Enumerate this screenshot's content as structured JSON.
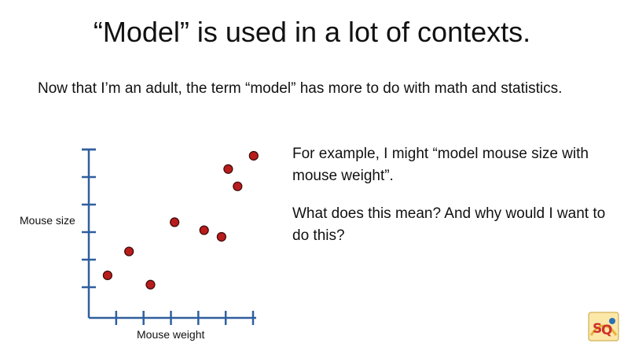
{
  "slide": {
    "title": "“Model” is used in a lot of contexts.",
    "subtitle": "Now that I’m an adult, the term “model” has more to do with math and statistics.",
    "paragraph1": "For example, I might “model mouse size with mouse weight”.",
    "paragraph2": "What does this mean? And why would I want to do this?"
  },
  "logo": {
    "text": "StatQuest",
    "icon": "statquest-logo-icon"
  },
  "chart_data": {
    "type": "scatter",
    "xlabel": "Mouse weight",
    "ylabel": "Mouse size",
    "xlim": [
      0,
      6
    ],
    "ylim": [
      0,
      6
    ],
    "x_ticks": [
      1,
      2,
      3,
      4,
      5,
      6
    ],
    "y_ticks": [
      1,
      2,
      3,
      4,
      5,
      6
    ],
    "tick_labels_shown": false,
    "grid": false,
    "point_color": "#b81c1c",
    "points": [
      {
        "x": 0.7,
        "y": 1.6
      },
      {
        "x": 1.5,
        "y": 2.5
      },
      {
        "x": 2.3,
        "y": 1.25
      },
      {
        "x": 3.2,
        "y": 3.6
      },
      {
        "x": 4.3,
        "y": 3.3
      },
      {
        "x": 4.95,
        "y": 3.05
      },
      {
        "x": 5.2,
        "y": 5.6
      },
      {
        "x": 5.55,
        "y": 4.95
      },
      {
        "x": 6.15,
        "y": 6.1
      }
    ]
  }
}
